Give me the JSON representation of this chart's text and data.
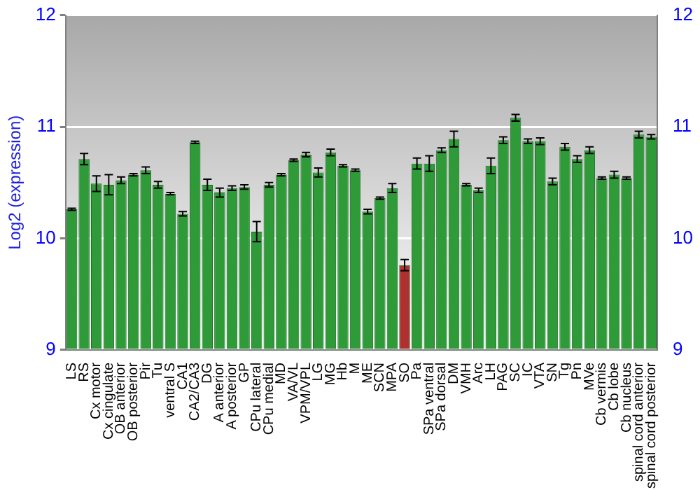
{
  "chart_data": {
    "type": "bar",
    "ylabel": "Log2 (expression)",
    "categories": [
      "LS",
      "RS",
      "Cx motor",
      "Cx cingulate",
      "OB anterior",
      "OB posterior",
      "Pir",
      "Tu",
      "ventral S",
      "CA1",
      "CA2/CA3",
      "DG",
      "A anterior",
      "A posterior",
      "GP",
      "CPu lateral",
      "CPu medial",
      "MD",
      "VA/VL",
      "VPM/VPL",
      "LG",
      "MG",
      "Hb",
      "M",
      "ME",
      "SCN",
      "MPA",
      "SO",
      "Pa",
      "SPa ventral",
      "SPa dorsal",
      "DM",
      "VMH",
      "Arc",
      "LH",
      "PAG",
      "SC",
      "IC",
      "VTA",
      "SN",
      "Tg",
      "Pn",
      "MVe",
      "Cb vermis",
      "Cb lobe",
      "Cb nucleus",
      "spinal cord anterior",
      "spinal cord posterior"
    ],
    "values": [
      10.26,
      10.71,
      10.49,
      10.48,
      10.52,
      10.57,
      10.61,
      10.48,
      10.4,
      10.22,
      10.86,
      10.48,
      10.41,
      10.45,
      10.46,
      10.06,
      10.48,
      10.57,
      10.7,
      10.75,
      10.59,
      10.77,
      10.65,
      10.61,
      10.24,
      10.36,
      10.45,
      9.76,
      10.67,
      10.67,
      10.79,
      10.89,
      10.48,
      10.43,
      10.65,
      10.88,
      11.08,
      10.87,
      10.87,
      10.51,
      10.82,
      10.71,
      10.79,
      10.54,
      10.57,
      10.54,
      10.93,
      10.91
    ],
    "errors": [
      0.01,
      0.05,
      0.07,
      0.09,
      0.03,
      0.01,
      0.03,
      0.03,
      0.01,
      0.02,
      0.01,
      0.05,
      0.04,
      0.02,
      0.02,
      0.09,
      0.02,
      0.01,
      0.01,
      0.02,
      0.04,
      0.03,
      0.01,
      0.01,
      0.02,
      0.01,
      0.04,
      0.05,
      0.05,
      0.07,
      0.02,
      0.07,
      0.01,
      0.02,
      0.07,
      0.03,
      0.03,
      0.02,
      0.03,
      0.03,
      0.03,
      0.03,
      0.03,
      0.01,
      0.03,
      0.01,
      0.03,
      0.02
    ],
    "colors": [
      "#2e9b38",
      "#2e9b38",
      "#2e9b38",
      "#2e9b38",
      "#2e9b38",
      "#2e9b38",
      "#2e9b38",
      "#2e9b38",
      "#2e9b38",
      "#2e9b38",
      "#2e9b38",
      "#2e9b38",
      "#2e9b38",
      "#2e9b38",
      "#2e9b38",
      "#2e9b38",
      "#2e9b38",
      "#2e9b38",
      "#2e9b38",
      "#2e9b38",
      "#2e9b38",
      "#2e9b38",
      "#2e9b38",
      "#2e9b38",
      "#2e9b38",
      "#2e9b38",
      "#2e9b38",
      "#b03030",
      "#2e9b38",
      "#2e9b38",
      "#2e9b38",
      "#2e9b38",
      "#2e9b38",
      "#2e9b38",
      "#2e9b38",
      "#2e9b38",
      "#2e9b38",
      "#2e9b38",
      "#2e9b38",
      "#2e9b38",
      "#2e9b38",
      "#2e9b38",
      "#2e9b38",
      "#2e9b38",
      "#2e9b38",
      "#2e9b38",
      "#2e9b38",
      "#2e9b38"
    ],
    "ylim": [
      9,
      12
    ],
    "yticks": [
      9,
      10,
      11,
      12
    ],
    "y2lim": [
      9,
      12
    ],
    "y2ticks": [
      9,
      10,
      11,
      12
    ],
    "grid": "y"
  }
}
